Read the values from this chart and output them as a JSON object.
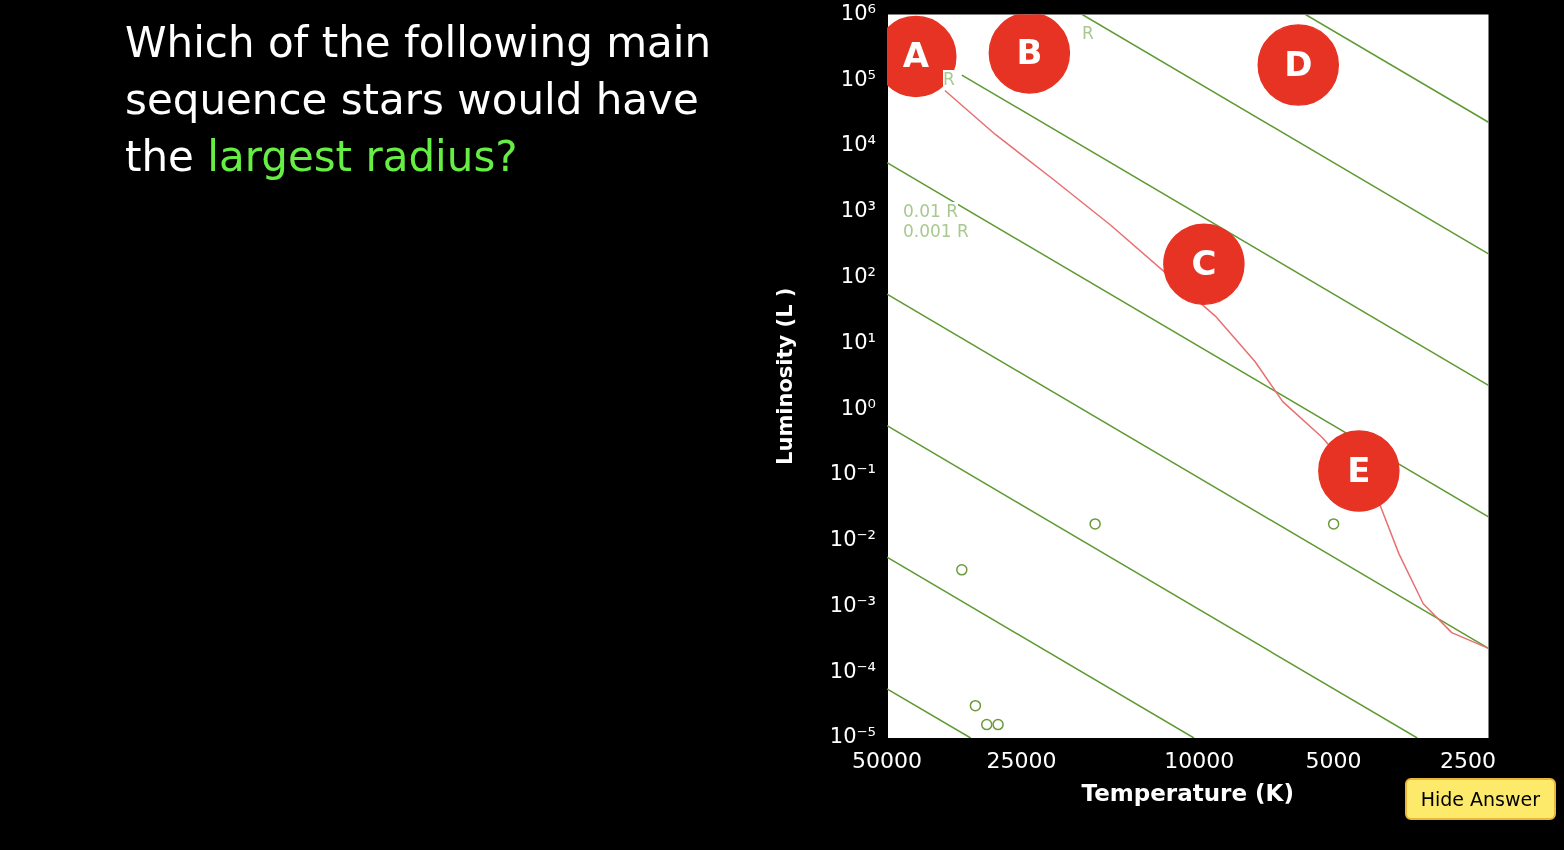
{
  "chart_data": {
    "type": "line",
    "title": "Which of the following main sequence stars would have the largest radius?",
    "xlabel": "Temperature (K)",
    "ylabel": "Luminosity (L )",
    "xlim": [
      50000,
      2250
    ],
    "xticks": [
      50000,
      25000,
      10000,
      5000,
      2500
    ],
    "ylim": [
      1e-05,
      1000000
    ],
    "yticks": [
      {
        "value": 1e-05,
        "label": "10⁻⁵"
      },
      {
        "value": 0.0001,
        "label": "10⁻⁴"
      },
      {
        "value": 0.001,
        "label": "10⁻³"
      },
      {
        "value": 0.01,
        "label": "10⁻²"
      },
      {
        "value": 0.1,
        "label": "10⁻¹"
      },
      {
        "value": 1,
        "label": "10⁰"
      },
      {
        "value": 10,
        "label": "10¹"
      },
      {
        "value": 100,
        "label": "10²"
      },
      {
        "value": 1000,
        "label": "10³"
      },
      {
        "value": 10000,
        "label": "10⁴"
      },
      {
        "value": 100000,
        "label": "10⁵"
      },
      {
        "value": 1000000,
        "label": "10⁶"
      }
    ],
    "log": "xy",
    "grid": false,
    "legend": false,
    "marker": "none",
    "line_style": "solid",
    "series": [
      {
        "color": "#5e9a32",
        "x": [
          5778,
          2250
        ],
        "values": [
          1000000,
          23000
        ]
      },
      {
        "color": "#5e9a32",
        "x": [
          18270,
          2250
        ],
        "values": [
          1000000,
          230
        ]
      },
      {
        "color": "#5e9a32",
        "x": [
          34000,
          2250
        ],
        "values": [
          120000,
          2.3
        ]
      },
      {
        "color": "#5e9a32",
        "x": [
          50000,
          2250
        ],
        "values": [
          5600,
          0.023
        ]
      },
      {
        "color": "#5e9a32",
        "x": [
          50000,
          2250
        ],
        "values": [
          56,
          0.00023
        ]
      },
      {
        "color": "#5e9a32",
        "x": [
          50000,
          3249
        ],
        "values": [
          0.56,
          1e-05
        ]
      },
      {
        "color": "#5e9a32",
        "x": [
          50000,
          10275
        ],
        "values": [
          0.0056,
          1e-05
        ]
      },
      {
        "color": "#5e9a32",
        "x": [
          50000,
          32490
        ],
        "values": [
          5.6e-05,
          1e-05
        ]
      },
      {
        "color": "#e87070",
        "x": [
          37100,
          28600,
          21200,
          15800,
          11700,
          9200,
          7500,
          6500,
          5300,
          4450,
          3950,
          3570,
          3150,
          2720,
          2250
        ],
        "values": [
          70000,
          15000,
          3100,
          630,
          null,
          26,
          5.3,
          1.3,
          0.37,
          null,
          0.037,
          0.0063,
          0.0011,
          0.0004,
          0.00023
        ]
      },
      {
        "type": "scatter",
        "marker": "circle",
        "color": "#6b9a3a",
        "x": [
          34000,
          17100,
          5000,
          31700,
          29900,
          28200
        ],
        "values": [
          0.0036,
          0.018,
          0.018,
          3.1e-05,
          1.6e-05,
          1.6e-05
        ]
      },
      {
        "type": "scatter",
        "marker": "circle",
        "color": "#e63323",
        "x": [
          43100,
          24000,
          9760,
          6000,
          4390
        ],
        "values": [
          230000,
          260000,
          160,
          170000,
          0.115
        ],
        "value_labels": [
          "A",
          "B",
          "C",
          "D",
          "E"
        ]
      }
    ],
    "annotations": [
      "R",
      "R",
      "0.01 R",
      "0.001 R",
      "Hide Answer"
    ]
  }
}
